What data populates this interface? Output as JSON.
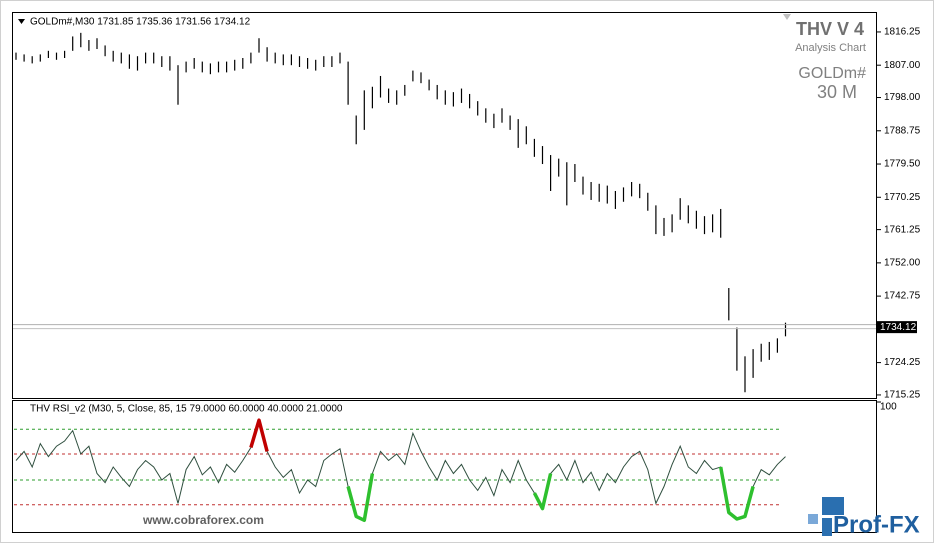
{
  "chart_data": [
    {
      "type": "ohlc",
      "title": "GOLDm#,M30  1731.85 1735.36 1731.56 1734.12",
      "annotations": [
        "THV V 4",
        "Analysis Chart",
        "GOLDm#",
        "30 M"
      ],
      "high": [
        1810.5,
        1810,
        1809.5,
        1810,
        1811,
        1810.5,
        1811,
        1815,
        1816,
        1814,
        1814.5,
        1812.5,
        1811,
        1810.5,
        1810,
        1809.5,
        1810.5,
        1810.5,
        1809.5,
        1809.5,
        1807,
        1808,
        1809,
        1808,
        1807.5,
        1808,
        1808,
        1808.5,
        1809,
        1810.5,
        1814.5,
        1812,
        1810.5,
        1810,
        1810,
        1809.5,
        1809,
        1808.5,
        1809.5,
        1809.5,
        1810.5,
        1808,
        1793,
        1800,
        1801,
        1804,
        1800.5,
        1800,
        1801.5,
        1805.5,
        1805,
        1803,
        1801.5,
        1800,
        1799.5,
        1800.5,
        1799,
        1797,
        1795,
        1793.5,
        1795,
        1793,
        1792,
        1790,
        1786.5,
        1784.5,
        1782,
        1781,
        1780,
        1779.5,
        1776,
        1774.5,
        1774,
        1773.5,
        1772,
        1773,
        1774.5,
        1774,
        1771.5,
        1768,
        1764.5,
        1765.5,
        1770,
        1768,
        1766.5,
        1765,
        1765.5,
        1767,
        1745,
        1734,
        1726,
        1728,
        1729.5,
        1730,
        1731,
        1735.36
      ],
      "low": [
        1808.5,
        1808,
        1807.5,
        1808,
        1809,
        1808.5,
        1809,
        1811,
        1812,
        1811,
        1811.5,
        1809.5,
        1808,
        1807.5,
        1806,
        1805.5,
        1807.5,
        1807.5,
        1806.5,
        1805.5,
        1796,
        1805,
        1806,
        1805,
        1804.5,
        1805,
        1805,
        1805.5,
        1806,
        1807.5,
        1810.5,
        1808,
        1807.5,
        1807,
        1807,
        1806.5,
        1806,
        1805.5,
        1806.5,
        1806.5,
        1807.5,
        1796,
        1785,
        1789,
        1795,
        1798,
        1796.5,
        1796,
        1798.5,
        1802.5,
        1802,
        1800,
        1797.5,
        1796,
        1795.5,
        1796.5,
        1795,
        1793,
        1791,
        1789.5,
        1791,
        1789,
        1784,
        1785,
        1781.5,
        1779.5,
        1772,
        1776,
        1768,
        1774.5,
        1771,
        1769.5,
        1769,
        1768.5,
        1767,
        1769,
        1770.5,
        1770,
        1766.5,
        1760,
        1759.5,
        1760.5,
        1764,
        1763,
        1761.5,
        1760,
        1760.5,
        1759,
        1736,
        1722,
        1716,
        1720,
        1724.5,
        1725,
        1727,
        1731.56
      ],
      "last_price": 1734.12,
      "ylim": [
        1714.4,
        1821.8
      ],
      "yticks": [
        1816.25,
        {
          "value": 1807,
          "label": "1807.00"
        },
        {
          "value": 1798,
          "label": "1798.00"
        },
        1788.75,
        {
          "value": 1779.5,
          "label": "1779.50"
        },
        1770.25,
        1761.25,
        {
          "value": 1752,
          "label": "1752.00"
        },
        1742.75,
        1724.25,
        1715.25
      ],
      "color": "#000000"
    },
    {
      "type": "line",
      "title": "THV RSI_v2  (M30, 5, Close, 85, 15 79.0000 60.0000 40.0000 21.0000",
      "values": [
        55,
        62,
        50,
        68,
        58,
        66,
        70,
        78,
        60,
        66,
        45,
        38,
        50,
        42,
        35,
        48,
        55,
        50,
        40,
        45,
        22,
        48,
        58,
        44,
        50,
        38,
        52,
        46,
        55,
        65,
        86,
        62,
        50,
        42,
        48,
        30,
        40,
        35,
        55,
        60,
        64,
        35,
        12,
        9,
        45,
        62,
        55,
        60,
        52,
        76,
        62,
        50,
        40,
        55,
        45,
        52,
        40,
        32,
        42,
        28,
        48,
        38,
        55,
        40,
        30,
        18,
        45,
        52,
        40,
        55,
        38,
        46,
        32,
        45,
        38,
        50,
        58,
        62,
        48,
        22,
        35,
        52,
        66,
        50,
        45,
        55,
        48,
        50,
        15,
        10,
        12,
        35,
        48,
        44,
        52,
        58
      ],
      "color": "#2f4f3f",
      "high_color": "#c00000",
      "low_color": "#2ec02e",
      "levels": [
        {
          "value": 79,
          "color": "#2e9e2e"
        },
        {
          "value": 60,
          "color": "#c03030"
        },
        {
          "value": 40,
          "color": "#2e9e2e"
        },
        {
          "value": 21,
          "color": "#c03030"
        }
      ],
      "ylim": [
        0,
        100
      ],
      "yticks": [
        100
      ]
    }
  ],
  "footer": {
    "site": "www.cobraforex.com",
    "logo": "Prof-FX"
  }
}
